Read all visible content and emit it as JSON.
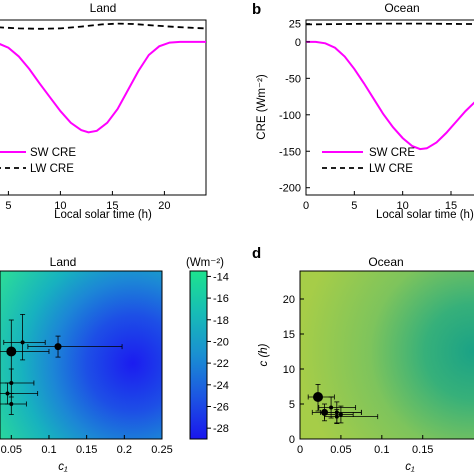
{
  "chart_data": [
    {
      "panel": "",
      "type": "line",
      "title": "Land",
      "xlabel": "Local solar time (h)",
      "ylabel": "",
      "xlim": [
        4,
        24
      ],
      "ylim": [
        -210,
        30
      ],
      "xticks": [
        5,
        10,
        15,
        20
      ],
      "yticks": [],
      "legend_position": "bottom-left",
      "series": [
        {
          "name": "SW CRE",
          "color": "#ff00ff",
          "style": "solid",
          "x": [
            4,
            5,
            6,
            7,
            8,
            9,
            10,
            11,
            12,
            12.7,
            13.5,
            14.5,
            15.5,
            16.5,
            17.5,
            18.5,
            19.5,
            20.5,
            21.5,
            22.5,
            23.5,
            24
          ],
          "y": [
            -2,
            -8,
            -20,
            -37,
            -57,
            -76,
            -95,
            -111,
            -121,
            -124,
            -122,
            -111,
            -92,
            -66,
            -40,
            -18,
            -6,
            -1,
            0,
            0,
            0,
            0
          ]
        },
        {
          "name": "LW CRE",
          "color": "#000000",
          "style": "dashed",
          "x": [
            4,
            6,
            8,
            10,
            12,
            14,
            15.5,
            17,
            19,
            21,
            23,
            24
          ],
          "y": [
            20,
            18.5,
            18,
            18.5,
            21,
            24,
            25,
            24.5,
            22.5,
            20.5,
            19,
            18.5
          ]
        }
      ]
    },
    {
      "panel": "b",
      "type": "line",
      "title": "Ocean",
      "xlabel": "Local solar time (h)",
      "ylabel": "CRE (Wm⁻²)",
      "xlim": [
        0,
        18
      ],
      "ylim": [
        -210,
        30
      ],
      "xticks": [
        0,
        5,
        10,
        15
      ],
      "yticks": [
        25,
        0,
        -50,
        -100,
        -150,
        -200
      ],
      "legend_position": "bottom-left",
      "series": [
        {
          "name": "SW CRE",
          "color": "#ff00ff",
          "style": "solid",
          "x": [
            0,
            1,
            2,
            3,
            4,
            5,
            6,
            7,
            8,
            9,
            10,
            11,
            11.8,
            12.5,
            13.5,
            14.5,
            15.5,
            16.5,
            17.5,
            18
          ],
          "y": [
            0,
            0,
            -2,
            -8,
            -20,
            -37,
            -57,
            -78,
            -99,
            -117,
            -132,
            -143,
            -147,
            -146,
            -138,
            -125,
            -110,
            -95,
            -82,
            -75
          ]
        },
        {
          "name": "LW CRE",
          "color": "#000000",
          "style": "dashed",
          "x": [
            0,
            4,
            8,
            12,
            16,
            18
          ],
          "y": [
            24,
            24.5,
            25,
            25,
            24.5,
            24.5
          ]
        }
      ]
    },
    {
      "panel": "",
      "type": "heatmap",
      "title": "Land",
      "xlabel": "c₁",
      "ylabel": "",
      "xlim": [
        0.035,
        0.25
      ],
      "ylim": [
        0,
        24
      ],
      "xticks": [
        "0.05",
        "0.1",
        "0.15",
        "0.2",
        "0.25"
      ],
      "colorbar": {
        "label": "(Wm⁻²)",
        "min": -29,
        "max": -13.5,
        "ticks": [
          -14,
          -16,
          -18,
          -20,
          -22,
          -24,
          -26,
          -28
        ]
      },
      "points": [
        {
          "x": 0.05,
          "y": 12.5,
          "xerr": [
            0.03,
            0.05
          ],
          "yerr": [
            4.5,
            4.5
          ],
          "size": "large"
        },
        {
          "x": 0.112,
          "y": 13.2,
          "xerr": [
            0.04,
            0.085
          ],
          "yerr": [
            1.5,
            1.5
          ],
          "size": "medium"
        },
        {
          "x": 0.065,
          "y": 13.8,
          "xerr": [
            0.025,
            0.03
          ],
          "yerr": [
            2.5,
            4
          ],
          "size": "small"
        },
        {
          "x": 0.05,
          "y": 8,
          "xerr": [
            0.015,
            0.03
          ],
          "yerr": [
            2,
            2
          ],
          "size": "small"
        },
        {
          "x": 0.045,
          "y": 6.5,
          "xerr": [
            0.01,
            0.04
          ],
          "yerr": [
            1.5,
            1.5
          ],
          "size": "small"
        },
        {
          "x": 0.05,
          "y": 5,
          "xerr": [
            0.015,
            0.02
          ],
          "yerr": [
            1.5,
            1.5
          ],
          "size": "small"
        }
      ]
    },
    {
      "panel": "d",
      "type": "heatmap",
      "title": "Ocean",
      "xlabel": "c₁",
      "ylabel": "c (h)",
      "xlim": [
        0,
        0.22
      ],
      "ylim": [
        0,
        24
      ],
      "xticks": [
        "0",
        "0.05",
        "0.1",
        "0.15"
      ],
      "yticks": [
        0,
        5,
        10,
        15,
        20
      ],
      "points": [
        {
          "x": 0.022,
          "y": 6,
          "xerr": [
            0.012,
            0.02
          ],
          "yerr": [
            2,
            1.8
          ],
          "size": "large"
        },
        {
          "x": 0.03,
          "y": 3.8,
          "xerr": [
            0.015,
            0.045
          ],
          "yerr": [
            1.2,
            1.2
          ],
          "size": "medium"
        },
        {
          "x": 0.045,
          "y": 3.8,
          "xerr": [
            0.02,
            0.03
          ],
          "yerr": [
            1.5,
            1.5
          ],
          "size": "small"
        },
        {
          "x": 0.038,
          "y": 4.5,
          "xerr": [
            0.015,
            0.03
          ],
          "yerr": [
            1.5,
            1.5
          ],
          "size": "small"
        },
        {
          "x": 0.05,
          "y": 3.5,
          "xerr": [
            0.02,
            0.015
          ],
          "yerr": [
            1.2,
            1.2
          ],
          "size": "small"
        },
        {
          "x": 0.045,
          "y": 3.2,
          "xerr": [
            0.015,
            0.05
          ],
          "yerr": [
            1.0,
            1.0
          ],
          "size": "small"
        }
      ]
    }
  ]
}
